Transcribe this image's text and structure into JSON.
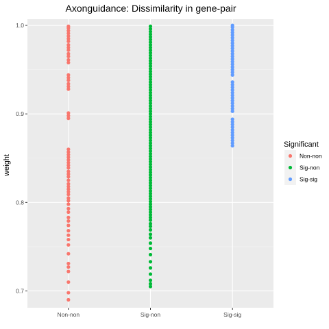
{
  "chart_data": {
    "type": "scatter",
    "title": "Axonguidance: Dissimilarity in gene-pair",
    "xlabel": "",
    "ylabel": "weight",
    "categories": [
      "Non-non",
      "Sig-non",
      "Sig-sig"
    ],
    "ylim": [
      0.681,
      1.007
    ],
    "yticks": [
      "0.7",
      "0.8",
      "0.9",
      "1.0"
    ],
    "grid": true,
    "legend": {
      "title": "Significant",
      "position": "right",
      "entries": [
        "Non-non",
        "Sig-non",
        "Sig-sig"
      ]
    },
    "series": [
      {
        "name": "Non-non",
        "color": "#F8766D",
        "category": "Non-non",
        "y": [
          0.69,
          0.698,
          0.71,
          0.722,
          0.727,
          0.731,
          0.742,
          0.752,
          0.758,
          0.763,
          0.768,
          0.774,
          0.779,
          0.783,
          0.789,
          0.793,
          0.798,
          0.802,
          0.805,
          0.809,
          0.812,
          0.815,
          0.818,
          0.821,
          0.825,
          0.829,
          0.832,
          0.835,
          0.839,
          0.842,
          0.845,
          0.848,
          0.851,
          0.854,
          0.857,
          0.86,
          0.895,
          0.898,
          0.901,
          0.928,
          0.931,
          0.934,
          0.938,
          0.941,
          0.944,
          0.958,
          0.961,
          0.965,
          0.968,
          0.972,
          0.975,
          0.978,
          0.982,
          0.985,
          0.988,
          0.991,
          0.994,
          0.997,
          0.999
        ]
      },
      {
        "name": "Sig-non",
        "color": "#00BA38",
        "category": "Sig-non",
        "y": [
          0.705,
          0.708,
          0.712,
          0.719,
          0.726,
          0.733,
          0.741,
          0.748,
          0.754,
          0.76,
          0.764,
          0.769,
          0.773,
          0.776,
          0.78,
          0.783,
          0.786,
          0.789,
          0.792,
          0.795,
          0.798,
          0.801,
          0.804,
          0.807,
          0.81,
          0.813,
          0.816,
          0.819,
          0.822,
          0.825,
          0.828,
          0.831,
          0.834,
          0.837,
          0.84,
          0.843,
          0.846,
          0.849,
          0.852,
          0.855,
          0.858,
          0.861,
          0.864,
          0.867,
          0.87,
          0.873,
          0.876,
          0.879,
          0.882,
          0.885,
          0.888,
          0.891,
          0.894,
          0.897,
          0.9,
          0.903,
          0.906,
          0.909,
          0.912,
          0.915,
          0.918,
          0.921,
          0.924,
          0.927,
          0.93,
          0.933,
          0.936,
          0.939,
          0.942,
          0.945,
          0.948,
          0.951,
          0.954,
          0.957,
          0.96,
          0.963,
          0.966,
          0.969,
          0.972,
          0.975,
          0.978,
          0.981,
          0.984,
          0.987,
          0.99,
          0.993,
          0.996,
          0.999
        ]
      },
      {
        "name": "Sig-sig",
        "color": "#619CFF",
        "category": "Sig-sig",
        "y": [
          0.864,
          0.867,
          0.87,
          0.873,
          0.876,
          0.879,
          0.882,
          0.885,
          0.888,
          0.891,
          0.894,
          0.903,
          0.906,
          0.909,
          0.912,
          0.915,
          0.918,
          0.921,
          0.924,
          0.927,
          0.93,
          0.933,
          0.936,
          0.944,
          0.947,
          0.95,
          0.953,
          0.956,
          0.959,
          0.962,
          0.965,
          0.968,
          0.971,
          0.974,
          0.977,
          0.98,
          0.983,
          0.986,
          0.989,
          0.992,
          0.995,
          0.998,
          1.0
        ]
      }
    ]
  }
}
